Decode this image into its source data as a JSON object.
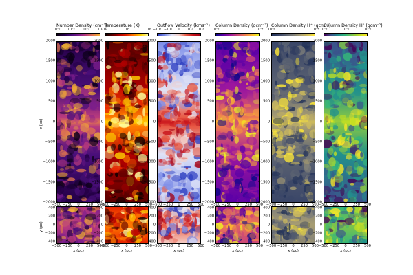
{
  "panels": [
    {
      "title": "Number Density (cm⁻³)",
      "cbar_ticks": [
        "10⁻⁵",
        "10⁻³",
        "10⁻¹",
        "10¹"
      ],
      "colormap": "plasma-dark",
      "accent": "#f2d24a"
    },
    {
      "title": "Temperature (K)",
      "cbar_ticks": [
        "10²",
        "10⁴",
        "10⁶"
      ],
      "colormap": "hot",
      "accent": "#ffef5a"
    },
    {
      "title": "Outflow Velocity (kms⁻¹)",
      "cbar_ticks": [
        "−10³",
        "−10¹",
        "0",
        "10¹",
        "10³"
      ],
      "colormap": "bwr",
      "accent": "#d8221f"
    },
    {
      "title": "Column Density (gcm⁻²)",
      "cbar_ticks": [
        "10⁻⁸",
        "10⁻⁴"
      ],
      "colormap": "plasma",
      "accent": "#e48a2f"
    },
    {
      "title": "Column Density H⁺ (gcm⁻²)",
      "cbar_ticks": [
        "10⁻⁸",
        "10⁻⁴"
      ],
      "colormap": "cividis",
      "accent": "#c9b96a"
    },
    {
      "title": "Column Density H⁰ (gcm⁻²)",
      "cbar_ticks": [
        "10⁻⁸",
        "10⁻⁵",
        "10⁻²"
      ],
      "colormap": "viridis",
      "accent": "#7ec34a"
    }
  ],
  "top_y_ticks": [
    "2000",
    "1500",
    "1000",
    "500",
    "0",
    "−500",
    "−1000",
    "−1500",
    "−2000"
  ],
  "bottom_y_ticks": [
    "400",
    "200",
    "0",
    "−200",
    "−400"
  ],
  "x_ticks": [
    "−500",
    "−250",
    "0",
    "250",
    "500"
  ],
  "top_ylabel": "z (pc)",
  "bottom_ylabel": "y (pc)",
  "xlabel": "x (pc)",
  "colors": {
    "plasma": [
      "#0d0887",
      "#5c01a6",
      "#9c179e",
      "#cc4778",
      "#ed7953",
      "#fdb42f",
      "#f0f921"
    ],
    "hot": [
      "#0b0000",
      "#5c0000",
      "#b00000",
      "#e62400",
      "#ff7a00",
      "#ffd000",
      "#ffff9e"
    ],
    "bwr": [
      "#2b3cc0",
      "#7f8fe8",
      "#dfe3f7",
      "#f5d0c8",
      "#e85a45",
      "#c9141b",
      "#a30015"
    ],
    "cividis": [
      "#1f2f57",
      "#3a4668",
      "#5d6472",
      "#7f7f7a",
      "#a89d72",
      "#d0bd5c",
      "#fde737"
    ],
    "viridis": [
      "#440154",
      "#3b528b",
      "#21918c",
      "#35b779",
      "#7ec34a",
      "#c2df23",
      "#fde725"
    ]
  }
}
